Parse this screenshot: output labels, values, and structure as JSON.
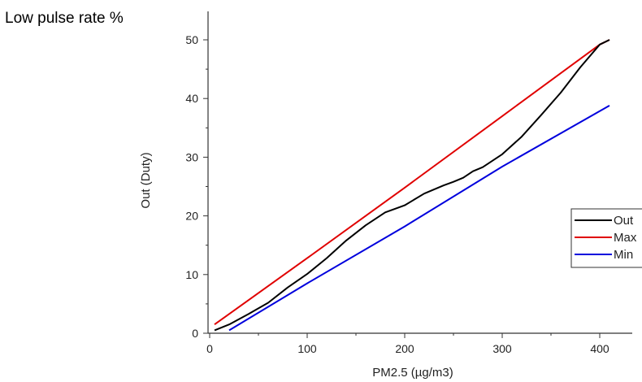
{
  "figure_caption": "Low pulse rate %",
  "chart_data": {
    "type": "line",
    "title": "",
    "xlabel": "PM2.5 (µg/m3)",
    "ylabel": "Out (Duty)",
    "xlim": [
      0,
      420
    ],
    "ylim": [
      0,
      50
    ],
    "x_ticks": [
      0,
      100,
      200,
      300,
      400
    ],
    "y_ticks": [
      0,
      10,
      20,
      30,
      40,
      50
    ],
    "grid": false,
    "legend_position": "right, clipped at the image edge",
    "series": [
      {
        "name": "Out",
        "color": "#000000",
        "points": [
          [
            5,
            0.5
          ],
          [
            20,
            1.5
          ],
          [
            40,
            3.3
          ],
          [
            60,
            5.2
          ],
          [
            80,
            7.8
          ],
          [
            100,
            10.1
          ],
          [
            120,
            12.8
          ],
          [
            140,
            15.8
          ],
          [
            160,
            18.4
          ],
          [
            180,
            20.6
          ],
          [
            200,
            21.8
          ],
          [
            220,
            23.8
          ],
          [
            240,
            25.2
          ],
          [
            250,
            25.8
          ],
          [
            260,
            26.5
          ],
          [
            270,
            27.6
          ],
          [
            280,
            28.3
          ],
          [
            300,
            30.5
          ],
          [
            320,
            33.5
          ],
          [
            340,
            37.2
          ],
          [
            360,
            41.0
          ],
          [
            380,
            45.3
          ],
          [
            400,
            49.2
          ],
          [
            410,
            50.0
          ]
        ]
      },
      {
        "name": "Max",
        "color": "#e00000",
        "points": [
          [
            5,
            1.5
          ],
          [
            100,
            12.8
          ],
          [
            200,
            24.8
          ],
          [
            300,
            37.0
          ],
          [
            400,
            49.2
          ],
          [
            410,
            50.0
          ]
        ]
      },
      {
        "name": "Min",
        "color": "#0000dd",
        "points": [
          [
            20,
            0.5
          ],
          [
            100,
            8.5
          ],
          [
            200,
            18.2
          ],
          [
            300,
            28.4
          ],
          [
            410,
            38.8
          ]
        ]
      }
    ]
  }
}
